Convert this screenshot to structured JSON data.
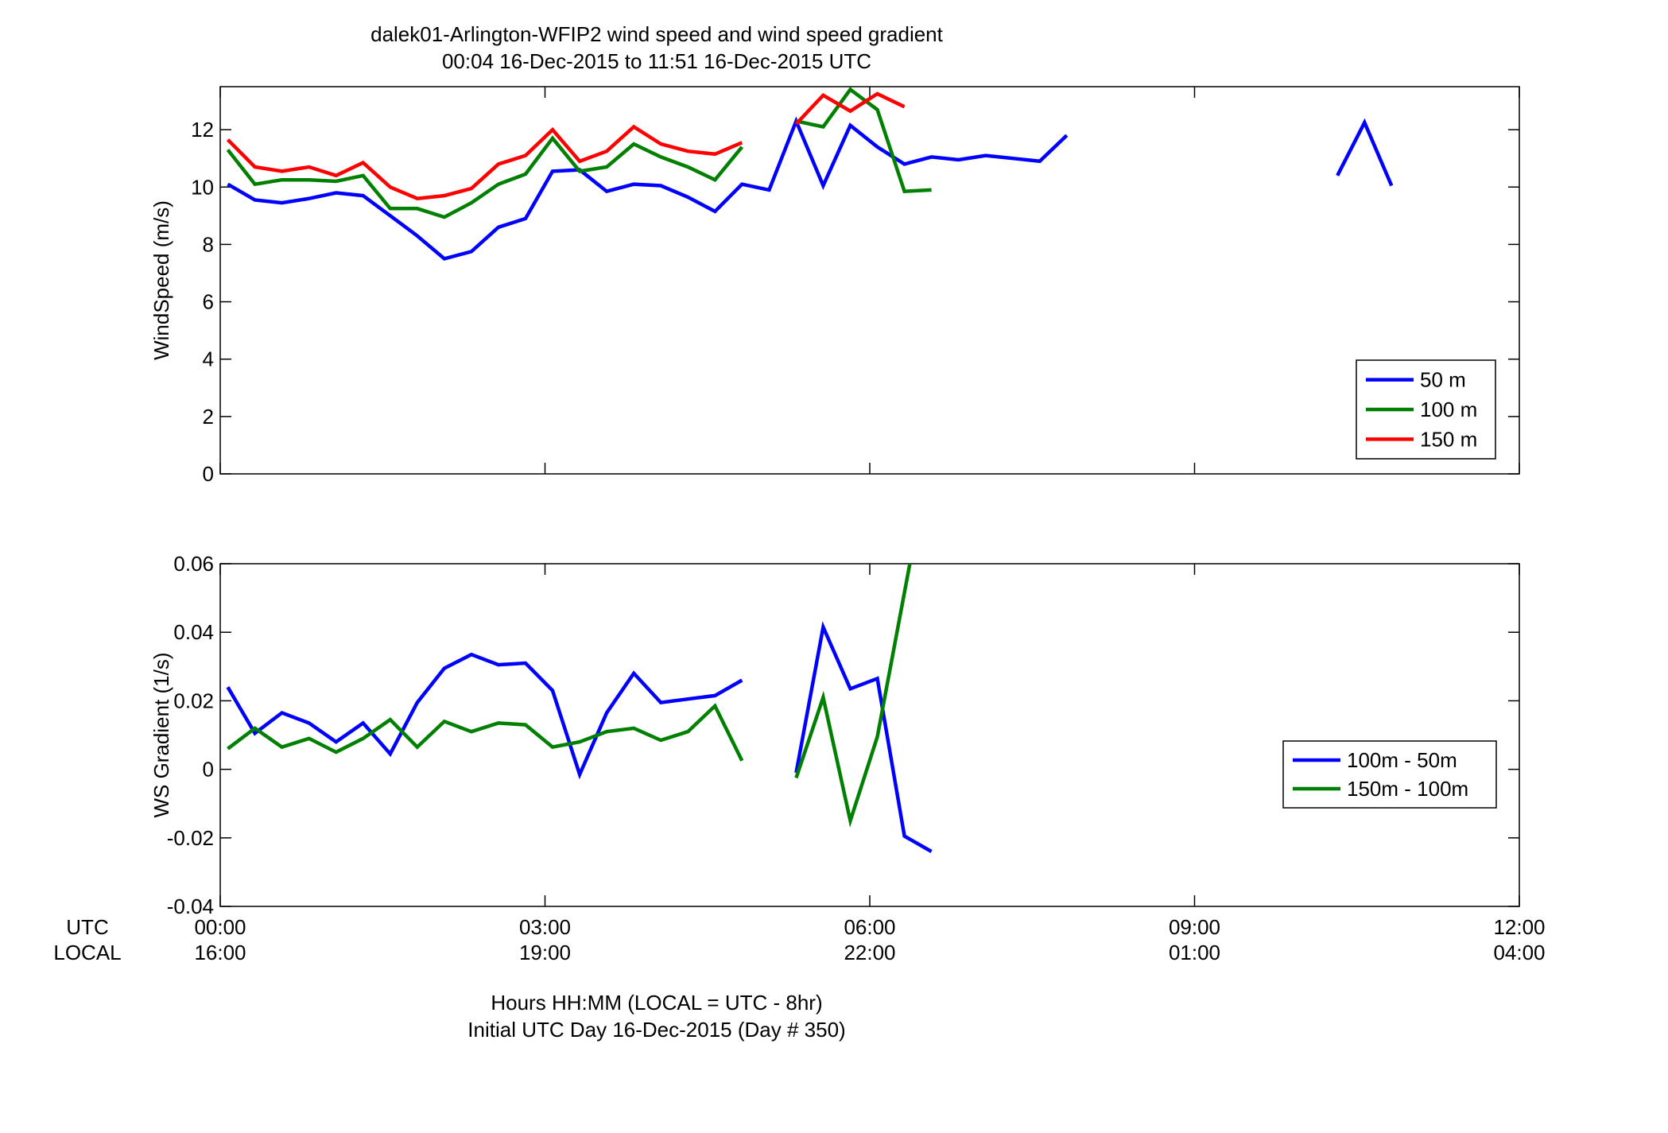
{
  "figure": {
    "title_line1": "dalek01-Arlington-WFIP2  wind speed and wind speed gradient",
    "title_line2": "00:04 16-Dec-2015 to 11:51 16-Dec-2015  UTC",
    "row_label_utc": "UTC",
    "row_label_local": "LOCAL",
    "xlabel_line1": "Hours HH:MM  (LOCAL = UTC - 8hr)",
    "xlabel_line2": "Initial UTC Day 16-Dec-2015 (Day # 350)",
    "x_ticks_utc": [
      "00:00",
      "03:00",
      "06:00",
      "09:00",
      "12:00"
    ],
    "x_ticks_local": [
      "16:00",
      "19:00",
      "22:00",
      "01:00",
      "04:00"
    ]
  },
  "chart_data": [
    {
      "type": "line",
      "ylabel": "WindSpeed (m/s)",
      "xlim": [
        0,
        12
      ],
      "ylim": [
        0,
        13.5
      ],
      "y_ticks": [
        0,
        2,
        4,
        6,
        8,
        10,
        12
      ],
      "grid": false,
      "legend_position": "lower-right",
      "series": [
        {
          "name": "50 m",
          "color": "#0000ff",
          "segments": [
            {
              "x": [
                0.07,
                0.32,
                0.57,
                0.82,
                1.07,
                1.32,
                1.57,
                1.82,
                2.07,
                2.32,
                2.57,
                2.82,
                3.07,
                3.32,
                3.57,
                3.82,
                4.07,
                4.32,
                4.57,
                4.82,
                5.07,
                5.32,
                5.57,
                5.82,
                6.07,
                6.32,
                6.57,
                6.82,
                7.07,
                7.32,
                7.57,
                7.82
              ],
              "y": [
                10.1,
                9.55,
                9.45,
                9.6,
                9.8,
                9.7,
                9.0,
                8.3,
                7.5,
                7.75,
                8.6,
                8.9,
                10.55,
                10.6,
                9.85,
                10.1,
                10.05,
                9.65,
                9.15,
                10.1,
                9.9,
                12.3,
                10.05,
                12.15,
                11.4,
                10.8,
                11.05,
                10.95,
                11.1,
                11.0,
                10.9,
                11.8
              ]
            },
            {
              "x": [
                10.32,
                10.57,
                10.82
              ],
              "y": [
                10.4,
                12.25,
                10.05
              ]
            }
          ]
        },
        {
          "name": "100 m",
          "color": "#008000",
          "segments": [
            {
              "x": [
                0.07,
                0.32,
                0.57,
                0.82,
                1.07,
                1.32,
                1.57,
                1.82,
                2.07,
                2.32,
                2.57,
                2.82,
                3.07,
                3.32,
                3.57,
                3.82,
                4.07,
                4.32,
                4.57,
                4.82
              ],
              "y": [
                11.3,
                10.1,
                10.25,
                10.25,
                10.2,
                10.4,
                9.25,
                9.25,
                8.95,
                9.45,
                10.1,
                10.45,
                11.7,
                10.55,
                10.7,
                11.5,
                11.05,
                10.7,
                10.25,
                11.4
              ]
            },
            {
              "x": [
                5.32,
                5.57,
                5.82,
                6.07,
                6.32,
                6.57
              ],
              "y": [
                12.3,
                12.1,
                13.4,
                12.7,
                9.85,
                9.9
              ]
            }
          ]
        },
        {
          "name": "150 m",
          "color": "#ff0000",
          "segments": [
            {
              "x": [
                0.07,
                0.32,
                0.57,
                0.82,
                1.07,
                1.32,
                1.57,
                1.82,
                2.07,
                2.32,
                2.57,
                2.82,
                3.07,
                3.32,
                3.57,
                3.82,
                4.07,
                4.32,
                4.57,
                4.82
              ],
              "y": [
                11.65,
                10.7,
                10.55,
                10.7,
                10.4,
                10.85,
                10.0,
                9.6,
                9.7,
                9.95,
                10.8,
                11.1,
                12.0,
                10.9,
                11.25,
                12.1,
                11.5,
                11.25,
                11.15,
                11.55
              ]
            },
            {
              "x": [
                5.32,
                5.57,
                5.82,
                6.07,
                6.32
              ],
              "y": [
                12.2,
                13.2,
                12.65,
                13.25,
                12.8
              ]
            }
          ]
        }
      ]
    },
    {
      "type": "line",
      "ylabel": "WS Gradient (1/s)",
      "xlim": [
        0,
        12
      ],
      "ylim": [
        -0.04,
        0.06
      ],
      "y_ticks": [
        -0.04,
        -0.02,
        0,
        0.02,
        0.04,
        0.06
      ],
      "y_tick_labels": [
        "-0.04",
        "-0.02",
        "0",
        "0.02",
        "0.04",
        "0.06"
      ],
      "grid": false,
      "legend_position": "lower-right",
      "series": [
        {
          "name": "100m - 50m",
          "color": "#0000ff",
          "segments": [
            {
              "x": [
                0.07,
                0.32,
                0.57,
                0.82,
                1.07,
                1.32,
                1.57,
                1.82,
                2.07,
                2.32,
                2.57,
                2.82,
                3.07,
                3.32,
                3.57,
                3.82,
                4.07,
                4.32,
                4.57,
                4.82
              ],
              "y": [
                0.024,
                0.0105,
                0.0165,
                0.0135,
                0.008,
                0.0135,
                0.0045,
                0.0195,
                0.0295,
                0.0335,
                0.0305,
                0.031,
                0.023,
                -0.0015,
                0.0165,
                0.028,
                0.0195,
                0.0205,
                0.0215,
                0.026
              ]
            },
            {
              "x": [
                5.32,
                5.57,
                5.82,
                6.07,
                6.32,
                6.57
              ],
              "y": [
                -0.001,
                0.0415,
                0.0235,
                0.0265,
                -0.0195,
                -0.024
              ]
            }
          ]
        },
        {
          "name": "150m - 100m",
          "color": "#008000",
          "segments": [
            {
              "x": [
                0.07,
                0.32,
                0.57,
                0.82,
                1.07,
                1.32,
                1.57,
                1.82,
                2.07,
                2.32,
                2.57,
                2.82,
                3.07,
                3.32,
                3.57,
                3.82,
                4.07,
                4.32,
                4.57,
                4.82
              ],
              "y": [
                0.006,
                0.012,
                0.0065,
                0.009,
                0.005,
                0.009,
                0.0145,
                0.0065,
                0.014,
                0.011,
                0.0135,
                0.013,
                0.0065,
                0.008,
                0.011,
                0.012,
                0.0085,
                0.011,
                0.0185,
                0.0025
              ]
            },
            {
              "x": [
                5.32,
                5.57,
                5.82,
                6.07,
                6.37
              ],
              "y": [
                -0.0025,
                0.021,
                -0.015,
                0.0095,
                0.06
              ]
            }
          ]
        }
      ]
    }
  ]
}
